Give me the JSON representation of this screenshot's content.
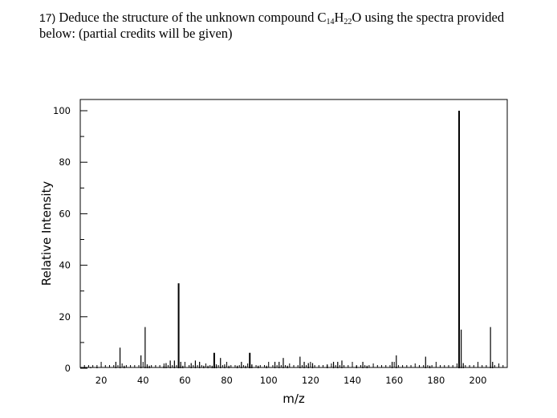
{
  "question": {
    "number": "17)",
    "line1_before": " Deduce the structure of the unknown compound C",
    "sub1": "14",
    "mid": "H",
    "sub2": "22",
    "line1_after": "O using the spectra provided",
    "line2": "below: (partial credits will be given)"
  },
  "chart_data": {
    "type": "bar",
    "title": "",
    "xlabel": "m/z",
    "ylabel": "Relative Intensity",
    "xlim": [
      10,
      214
    ],
    "ylim": [
      0,
      100
    ],
    "xticks": [
      20,
      40,
      60,
      80,
      100,
      120,
      140,
      160,
      180,
      200
    ],
    "yticks": [
      0,
      20,
      40,
      60,
      80,
      100
    ],
    "grid": false,
    "series": [
      {
        "x": [
          15,
          18,
          27,
          29,
          31,
          39,
          41,
          42,
          43,
          50,
          51,
          53,
          55,
          57,
          58,
          59,
          63,
          65,
          67,
          69,
          71,
          73,
          74,
          75,
          77,
          79,
          81,
          85,
          87,
          89,
          91,
          92,
          95,
          99,
          103,
          105,
          107,
          109,
          115,
          117,
          119,
          121,
          128,
          131,
          133,
          135,
          142,
          145,
          147,
          159,
          161,
          175,
          177,
          191,
          192,
          193,
          206,
          207
        ],
        "y": [
          0.5,
          0.5,
          2.5,
          8,
          1,
          5,
          16,
          1.5,
          1,
          1,
          2,
          3,
          3,
          33,
          2.5,
          1,
          2,
          3,
          2.5,
          1,
          1,
          1,
          6,
          1.5,
          4,
          1.5,
          1,
          1,
          2.5,
          1,
          6,
          1.5,
          1,
          1,
          2.5,
          2.5,
          4,
          1,
          4.5,
          2.5,
          2,
          2,
          1.5,
          2.5,
          2.5,
          3,
          1,
          2.5,
          1,
          2.5,
          5,
          4.5,
          1,
          100,
          15,
          2,
          16,
          2.5
        ]
      }
    ]
  }
}
